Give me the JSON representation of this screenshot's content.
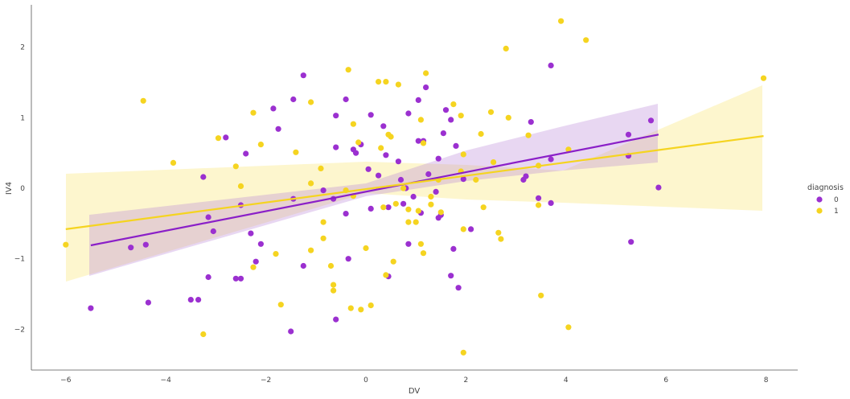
{
  "chart_data": {
    "type": "scatter",
    "xlabel": "DV",
    "ylabel": "IV4",
    "xlim": [
      -6.7,
      8.7
    ],
    "ylim": [
      -2.6,
      2.55
    ],
    "xticks": [
      -6,
      -4,
      -2,
      0,
      2,
      4,
      6,
      8
    ],
    "yticks": [
      -2,
      -1,
      0,
      1,
      2
    ],
    "xtick_labels": [
      "−6",
      "−4",
      "−2",
      "0",
      "2",
      "4",
      "6",
      "8"
    ],
    "ytick_labels": [
      "−2",
      "−1",
      "0",
      "1",
      "2"
    ],
    "legend": {
      "title": "diagnosis",
      "placement": "right"
    },
    "series": [
      {
        "name": "0",
        "color": "#9b30d0",
        "points": [
          [
            -5.5,
            -1.7
          ],
          [
            -4.7,
            -0.84
          ],
          [
            -4.4,
            -0.8
          ],
          [
            -4.35,
            -1.62
          ],
          [
            -3.5,
            -1.58
          ],
          [
            -3.35,
            -1.58
          ],
          [
            -3.25,
            0.16
          ],
          [
            -3.15,
            -1.26
          ],
          [
            -3.15,
            -0.41
          ],
          [
            -3.05,
            -0.61
          ],
          [
            -2.8,
            0.72
          ],
          [
            -2.6,
            -1.28
          ],
          [
            -2.5,
            -1.28
          ],
          [
            -2.5,
            -0.24
          ],
          [
            -2.4,
            0.49
          ],
          [
            -2.3,
            -0.64
          ],
          [
            -2.2,
            -1.04
          ],
          [
            -2.1,
            -0.79
          ],
          [
            -1.85,
            1.13
          ],
          [
            -1.75,
            0.84
          ],
          [
            -1.5,
            -2.03
          ],
          [
            -1.45,
            1.26
          ],
          [
            -1.45,
            -0.15
          ],
          [
            -1.25,
            1.6
          ],
          [
            -1.25,
            -1.1
          ],
          [
            -0.85,
            -0.03
          ],
          [
            -0.65,
            -0.15
          ],
          [
            -0.6,
            1.03
          ],
          [
            -0.6,
            0.58
          ],
          [
            -0.6,
            -1.86
          ],
          [
            -0.4,
            1.26
          ],
          [
            -0.4,
            -0.36
          ],
          [
            -0.35,
            -1.0
          ],
          [
            -0.25,
            0.55
          ],
          [
            -0.2,
            0.5
          ],
          [
            -0.1,
            0.62
          ],
          [
            0.05,
            0.27
          ],
          [
            0.1,
            1.04
          ],
          [
            0.1,
            -0.29
          ],
          [
            0.25,
            0.18
          ],
          [
            0.35,
            0.88
          ],
          [
            0.4,
            0.47
          ],
          [
            0.45,
            -1.25
          ],
          [
            0.45,
            -0.27
          ],
          [
            0.65,
            0.38
          ],
          [
            0.7,
            0.12
          ],
          [
            0.75,
            -0.22
          ],
          [
            0.8,
            0.0
          ],
          [
            0.85,
            1.06
          ],
          [
            0.85,
            -0.79
          ],
          [
            0.95,
            -0.12
          ],
          [
            1.05,
            0.67
          ],
          [
            1.05,
            1.25
          ],
          [
            1.1,
            -0.35
          ],
          [
            1.15,
            0.67
          ],
          [
            1.2,
            1.43
          ],
          [
            1.25,
            0.2
          ],
          [
            1.4,
            -0.05
          ],
          [
            1.45,
            0.42
          ],
          [
            1.45,
            -0.42
          ],
          [
            1.5,
            -0.38
          ],
          [
            1.55,
            0.78
          ],
          [
            1.6,
            1.11
          ],
          [
            1.7,
            0.97
          ],
          [
            1.7,
            -1.24
          ],
          [
            1.75,
            -0.86
          ],
          [
            1.8,
            0.6
          ],
          [
            1.85,
            -1.41
          ],
          [
            1.95,
            0.13
          ],
          [
            2.1,
            -0.58
          ],
          [
            3.15,
            0.12
          ],
          [
            3.2,
            0.17
          ],
          [
            3.3,
            0.94
          ],
          [
            3.45,
            -0.14
          ],
          [
            3.7,
            -0.21
          ],
          [
            3.7,
            1.74
          ],
          [
            3.7,
            0.41
          ],
          [
            5.25,
            0.76
          ],
          [
            5.25,
            0.46
          ],
          [
            5.3,
            -0.76
          ],
          [
            5.7,
            0.96
          ],
          [
            5.85,
            0.01
          ]
        ],
        "fit": [
          [
            -5.5,
            -0.81
          ],
          [
            5.85,
            0.76
          ]
        ]
      },
      {
        "name": "1",
        "color": "#f5d420",
        "points": [
          [
            -6.0,
            -0.8
          ],
          [
            -4.45,
            1.24
          ],
          [
            -3.85,
            0.36
          ],
          [
            -3.25,
            -2.07
          ],
          [
            -2.95,
            0.71
          ],
          [
            -2.6,
            0.31
          ],
          [
            -2.5,
            0.03
          ],
          [
            -2.25,
            1.07
          ],
          [
            -2.25,
            -1.12
          ],
          [
            -2.1,
            0.62
          ],
          [
            -1.8,
            -0.93
          ],
          [
            -1.7,
            -1.65
          ],
          [
            -1.4,
            0.51
          ],
          [
            -1.1,
            -0.88
          ],
          [
            -1.1,
            1.22
          ],
          [
            -1.1,
            0.07
          ],
          [
            -0.9,
            0.28
          ],
          [
            -0.85,
            -0.48
          ],
          [
            -0.85,
            -0.71
          ],
          [
            -0.7,
            -1.1
          ],
          [
            -0.65,
            -1.37
          ],
          [
            -0.65,
            -1.45
          ],
          [
            -0.4,
            -0.03
          ],
          [
            -0.35,
            1.68
          ],
          [
            -0.3,
            -1.7
          ],
          [
            -0.25,
            -0.11
          ],
          [
            -0.25,
            0.91
          ],
          [
            -0.15,
            0.65
          ],
          [
            -0.1,
            -1.72
          ],
          [
            0.0,
            -0.85
          ],
          [
            0.1,
            -1.66
          ],
          [
            0.25,
            1.51
          ],
          [
            0.3,
            0.57
          ],
          [
            0.35,
            -0.27
          ],
          [
            0.4,
            1.51
          ],
          [
            0.4,
            -1.23
          ],
          [
            0.45,
            0.76
          ],
          [
            0.5,
            0.73
          ],
          [
            0.55,
            -1.04
          ],
          [
            0.6,
            -0.22
          ],
          [
            0.65,
            1.47
          ],
          [
            0.75,
            0.0
          ],
          [
            0.85,
            -0.3
          ],
          [
            0.85,
            -0.48
          ],
          [
            1.0,
            -0.48
          ],
          [
            1.05,
            -0.32
          ],
          [
            1.1,
            0.97
          ],
          [
            1.1,
            -0.79
          ],
          [
            1.15,
            -0.92
          ],
          [
            1.15,
            0.64
          ],
          [
            1.2,
            1.63
          ],
          [
            1.3,
            -0.23
          ],
          [
            1.3,
            -0.12
          ],
          [
            1.45,
            0.12
          ],
          [
            1.5,
            -0.34
          ],
          [
            1.75,
            1.19
          ],
          [
            1.9,
            0.24
          ],
          [
            1.9,
            1.03
          ],
          [
            1.95,
            -0.58
          ],
          [
            1.95,
            0.48
          ],
          [
            1.95,
            -2.33
          ],
          [
            2.2,
            0.12
          ],
          [
            2.3,
            0.77
          ],
          [
            2.35,
            -0.27
          ],
          [
            2.5,
            1.08
          ],
          [
            2.55,
            0.37
          ],
          [
            2.65,
            -0.63
          ],
          [
            2.7,
            -0.72
          ],
          [
            2.8,
            1.98
          ],
          [
            2.85,
            1.0
          ],
          [
            3.25,
            0.75
          ],
          [
            3.45,
            -0.24
          ],
          [
            3.45,
            0.32
          ],
          [
            3.5,
            -1.52
          ],
          [
            3.9,
            2.37
          ],
          [
            4.05,
            -1.97
          ],
          [
            4.05,
            0.55
          ],
          [
            4.4,
            2.1
          ],
          [
            7.95,
            1.56
          ]
        ],
        "fit": [
          [
            -6.0,
            -0.58
          ],
          [
            7.95,
            0.74
          ]
        ]
      }
    ]
  }
}
